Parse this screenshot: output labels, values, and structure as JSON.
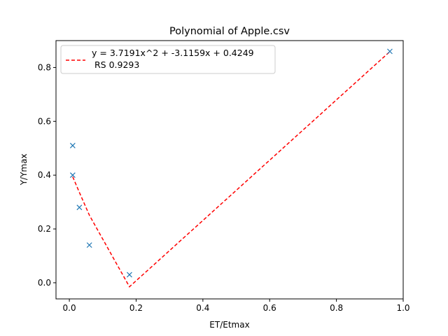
{
  "chart_data": {
    "type": "scatter",
    "title": "Polynomial of Apple.csv",
    "xlabel": "ET/Etmax",
    "ylabel": "Y/Ymax",
    "xlim": [
      -0.04,
      1.0
    ],
    "ylim": [
      -0.06,
      0.9
    ],
    "xticks": [
      0.0,
      0.2,
      0.4,
      0.6,
      0.8,
      1.0
    ],
    "yticks": [
      0.0,
      0.2,
      0.4,
      0.6,
      0.8
    ],
    "xtick_labels": [
      "0.0",
      "0.2",
      "0.4",
      "0.6",
      "0.8",
      "1.0"
    ],
    "ytick_labels": [
      "0.0",
      "0.2",
      "0.4",
      "0.6",
      "0.8"
    ],
    "grid": false,
    "legend_placement": "top-left",
    "series": [
      {
        "kind": "scatter",
        "marker": "x",
        "color": "#1f77b4",
        "x": [
          0.01,
          0.01,
          0.03,
          0.06,
          0.18,
          0.96
        ],
        "y": [
          0.51,
          0.4,
          0.28,
          0.14,
          0.03,
          0.86
        ]
      },
      {
        "kind": "line",
        "style": "dashed",
        "color": "#ff0000",
        "name_line1": "y = 3.7191x^2 + -3.1159x + 0.4249",
        "name_line2": " RS 0.9293",
        "x": [
          0.01,
          0.01,
          0.03,
          0.06,
          0.18,
          0.96
        ],
        "y": [
          0.394,
          0.394,
          0.336,
          0.251,
          -0.015,
          0.859
        ]
      }
    ]
  }
}
